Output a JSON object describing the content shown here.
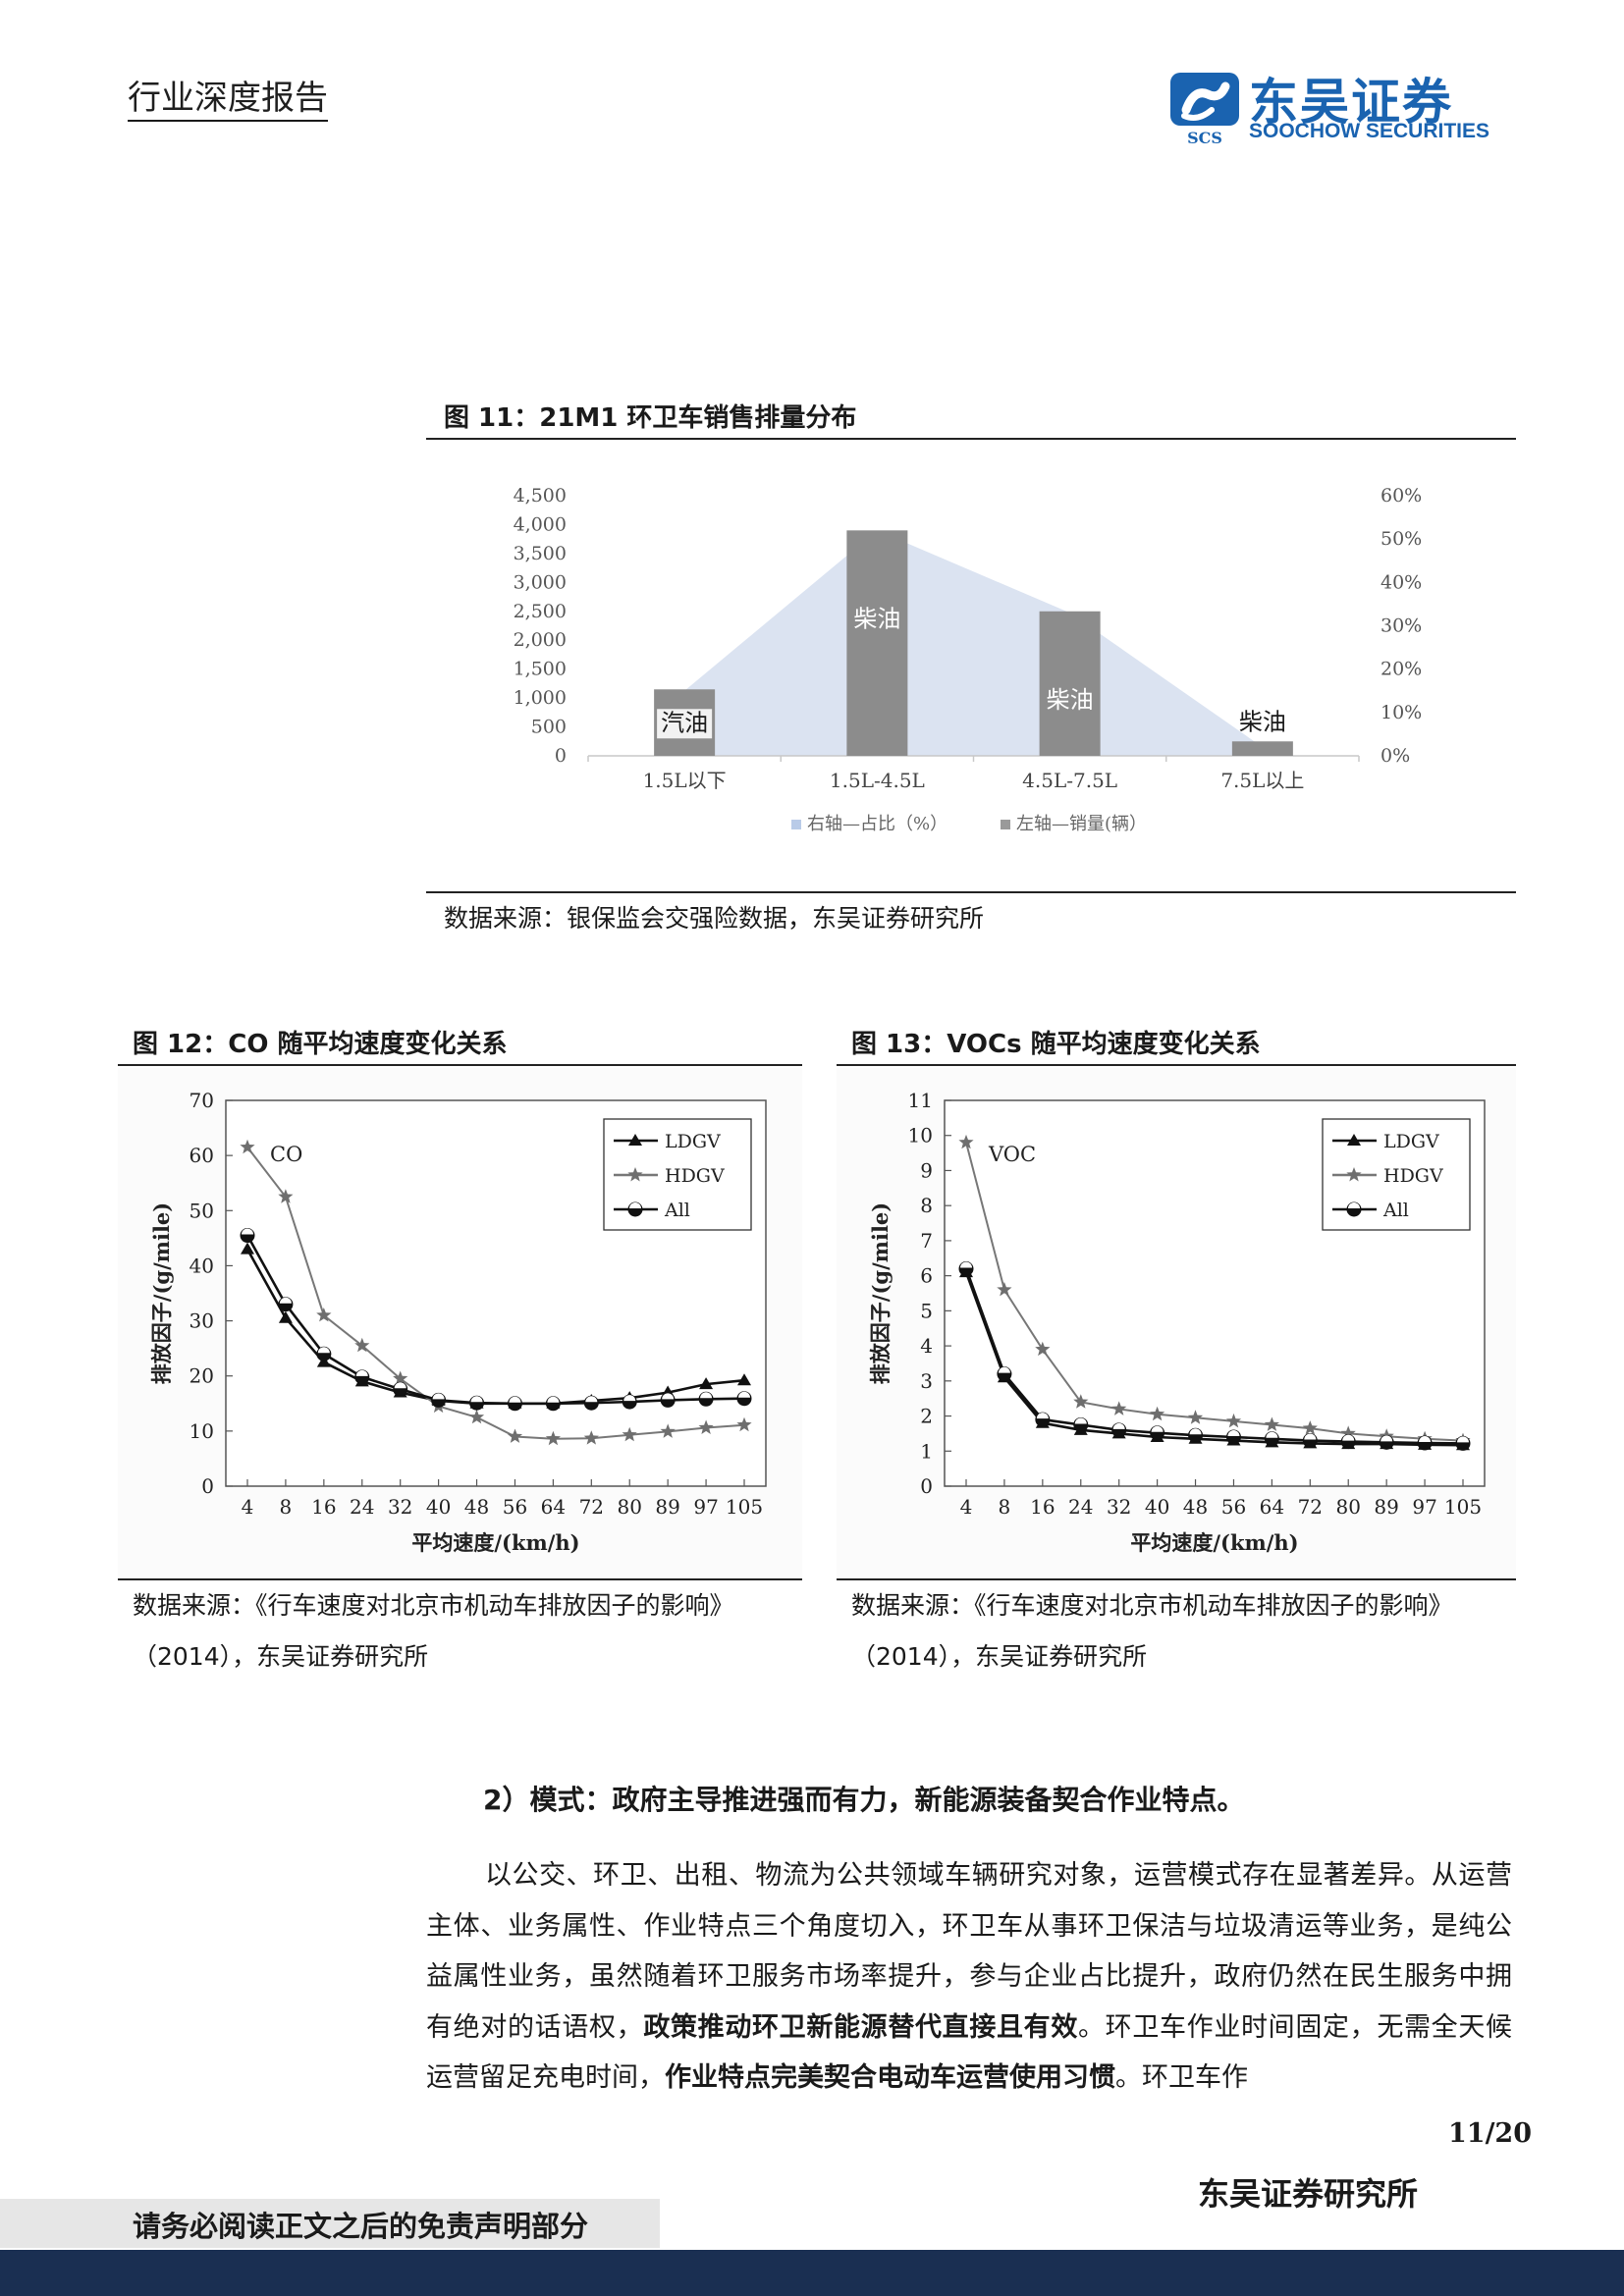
{
  "header": {
    "report_type": "行业深度报告",
    "logo": {
      "cn": "东吴证券",
      "en": "SOOCHOW SECURITIES",
      "mark": "SCS"
    }
  },
  "fig11": {
    "title": "图 11：21M1 环卫车销售排量分布",
    "source": "数据来源：银保监会交强险数据，东吴证券研究所",
    "chart_data": {
      "type": "bar",
      "categories": [
        "1.5L以下",
        "1.5L-4.5L",
        "4.5L-7.5L",
        "7.5L以上"
      ],
      "series": [
        {
          "name": "右轴—占比（%）",
          "type": "area",
          "axis": "right",
          "values": [
            15,
            52,
            33,
            2
          ]
        },
        {
          "name": "左轴—销量(辆）",
          "type": "bar",
          "axis": "left",
          "values": [
            1150,
            3900,
            2500,
            250
          ]
        }
      ],
      "bar_labels": [
        "汽油",
        "柴油",
        "柴油",
        "柴油"
      ],
      "y_left": {
        "min": 0,
        "max": 4500,
        "ticks": [
          "0",
          "500",
          "1,000",
          "1,500",
          "2,000",
          "2,500",
          "3,000",
          "3,500",
          "4,000",
          "4,500"
        ]
      },
      "y_right": {
        "min": 0,
        "max": 60,
        "ticks": [
          "0%",
          "10%",
          "20%",
          "30%",
          "40%",
          "50%",
          "60%"
        ]
      },
      "legend": [
        "右轴—占比（%）",
        "左轴—销量(辆）"
      ],
      "legend_position": "bottom",
      "colors": {
        "area": "#dbe3f1",
        "bar": "#8c8c8c"
      }
    }
  },
  "fig12": {
    "title": "图 12：CO 随平均速度变化关系",
    "source": "数据来源：《行车速度对北京市机动车排放因子的影响》（2014），东吴证券研究所",
    "chart_data": {
      "type": "line",
      "annotation": "CO",
      "xlabel": "平均速度/(km/h)",
      "ylabel": "排放因子/(g/mile)",
      "x": [
        "4",
        "8",
        "16",
        "24",
        "32",
        "40",
        "48",
        "56",
        "64",
        "72",
        "80",
        "89",
        "97",
        "105"
      ],
      "ylim": [
        0,
        70
      ],
      "yticks": [
        "0",
        "10",
        "20",
        "30",
        "40",
        "50",
        "60",
        "70"
      ],
      "series": [
        {
          "name": "LDGV",
          "marker": "triangle",
          "values": [
            43,
            30.5,
            22.5,
            19,
            17,
            15.5,
            15,
            15,
            15,
            15.5,
            16,
            17,
            18.5,
            19.2
          ]
        },
        {
          "name": "HDGV",
          "marker": "star",
          "values": [
            61.5,
            52.5,
            31,
            25.5,
            19.5,
            14.5,
            12.5,
            9,
            8.6,
            8.7,
            9.3,
            9.9,
            10.6,
            11.1
          ]
        },
        {
          "name": "All",
          "marker": "circle",
          "values": [
            45.5,
            33,
            24,
            19.8,
            17.6,
            15.6,
            15.1,
            15,
            15,
            15.1,
            15.3,
            15.6,
            15.8,
            15.9
          ]
        }
      ],
      "legend_position": "top-right"
    }
  },
  "fig13": {
    "title": "图 13：VOCs 随平均速度变化关系",
    "source": "数据来源：《行车速度对北京市机动车排放因子的影响》（2014），东吴证券研究所",
    "chart_data": {
      "type": "line",
      "annotation": "VOC",
      "xlabel": "平均速度/(km/h)",
      "ylabel": "排放因子/(g/mile)",
      "x": [
        "4",
        "8",
        "16",
        "24",
        "32",
        "40",
        "48",
        "56",
        "64",
        "72",
        "80",
        "89",
        "97",
        "105"
      ],
      "ylim": [
        0,
        11
      ],
      "yticks": [
        "0",
        "1",
        "2",
        "3",
        "4",
        "5",
        "6",
        "7",
        "8",
        "9",
        "10",
        "11"
      ],
      "series": [
        {
          "name": "LDGV",
          "marker": "triangle",
          "values": [
            6.1,
            3.1,
            1.8,
            1.6,
            1.5,
            1.4,
            1.35,
            1.3,
            1.25,
            1.22,
            1.2,
            1.2,
            1.18,
            1.17
          ]
        },
        {
          "name": "HDGV",
          "marker": "star",
          "values": [
            9.8,
            5.6,
            3.9,
            2.4,
            2.2,
            2.05,
            1.95,
            1.85,
            1.75,
            1.65,
            1.5,
            1.42,
            1.35,
            1.3
          ]
        },
        {
          "name": "All",
          "marker": "circle",
          "values": [
            6.2,
            3.2,
            1.9,
            1.75,
            1.6,
            1.52,
            1.45,
            1.4,
            1.35,
            1.3,
            1.27,
            1.25,
            1.23,
            1.22
          ]
        }
      ],
      "legend_position": "top-right"
    }
  },
  "section": {
    "heading": "2）模式：政府主导推进强而有力，新能源装备契合作业特点。",
    "paragraph": {
      "p1": "以公交、环卫、出租、物流为公共领域车辆研究对象，运营模式存在显著差异。从运营主体、业务属性、作业特点三个角度切入，环卫车从事环卫保洁与垃圾清运等业务，是纯公益属性业务，虽然随着环卫服务市场率提升，参与企业占比提升，政府仍然在民生服务中拥有绝对的话语权，",
      "b1": "政策推动环卫新能源替代直接且有效",
      "p2": "。环卫车作业时间固定，无需全天候运营留足充电时间，",
      "b2": "作业特点完美契合电动车运营使用习惯",
      "p3": "。环卫车作"
    }
  },
  "footer": {
    "page": "11/20",
    "institute": "东吴证券研究所",
    "disclaimer": "请务必阅读正文之后的免责声明部分"
  }
}
